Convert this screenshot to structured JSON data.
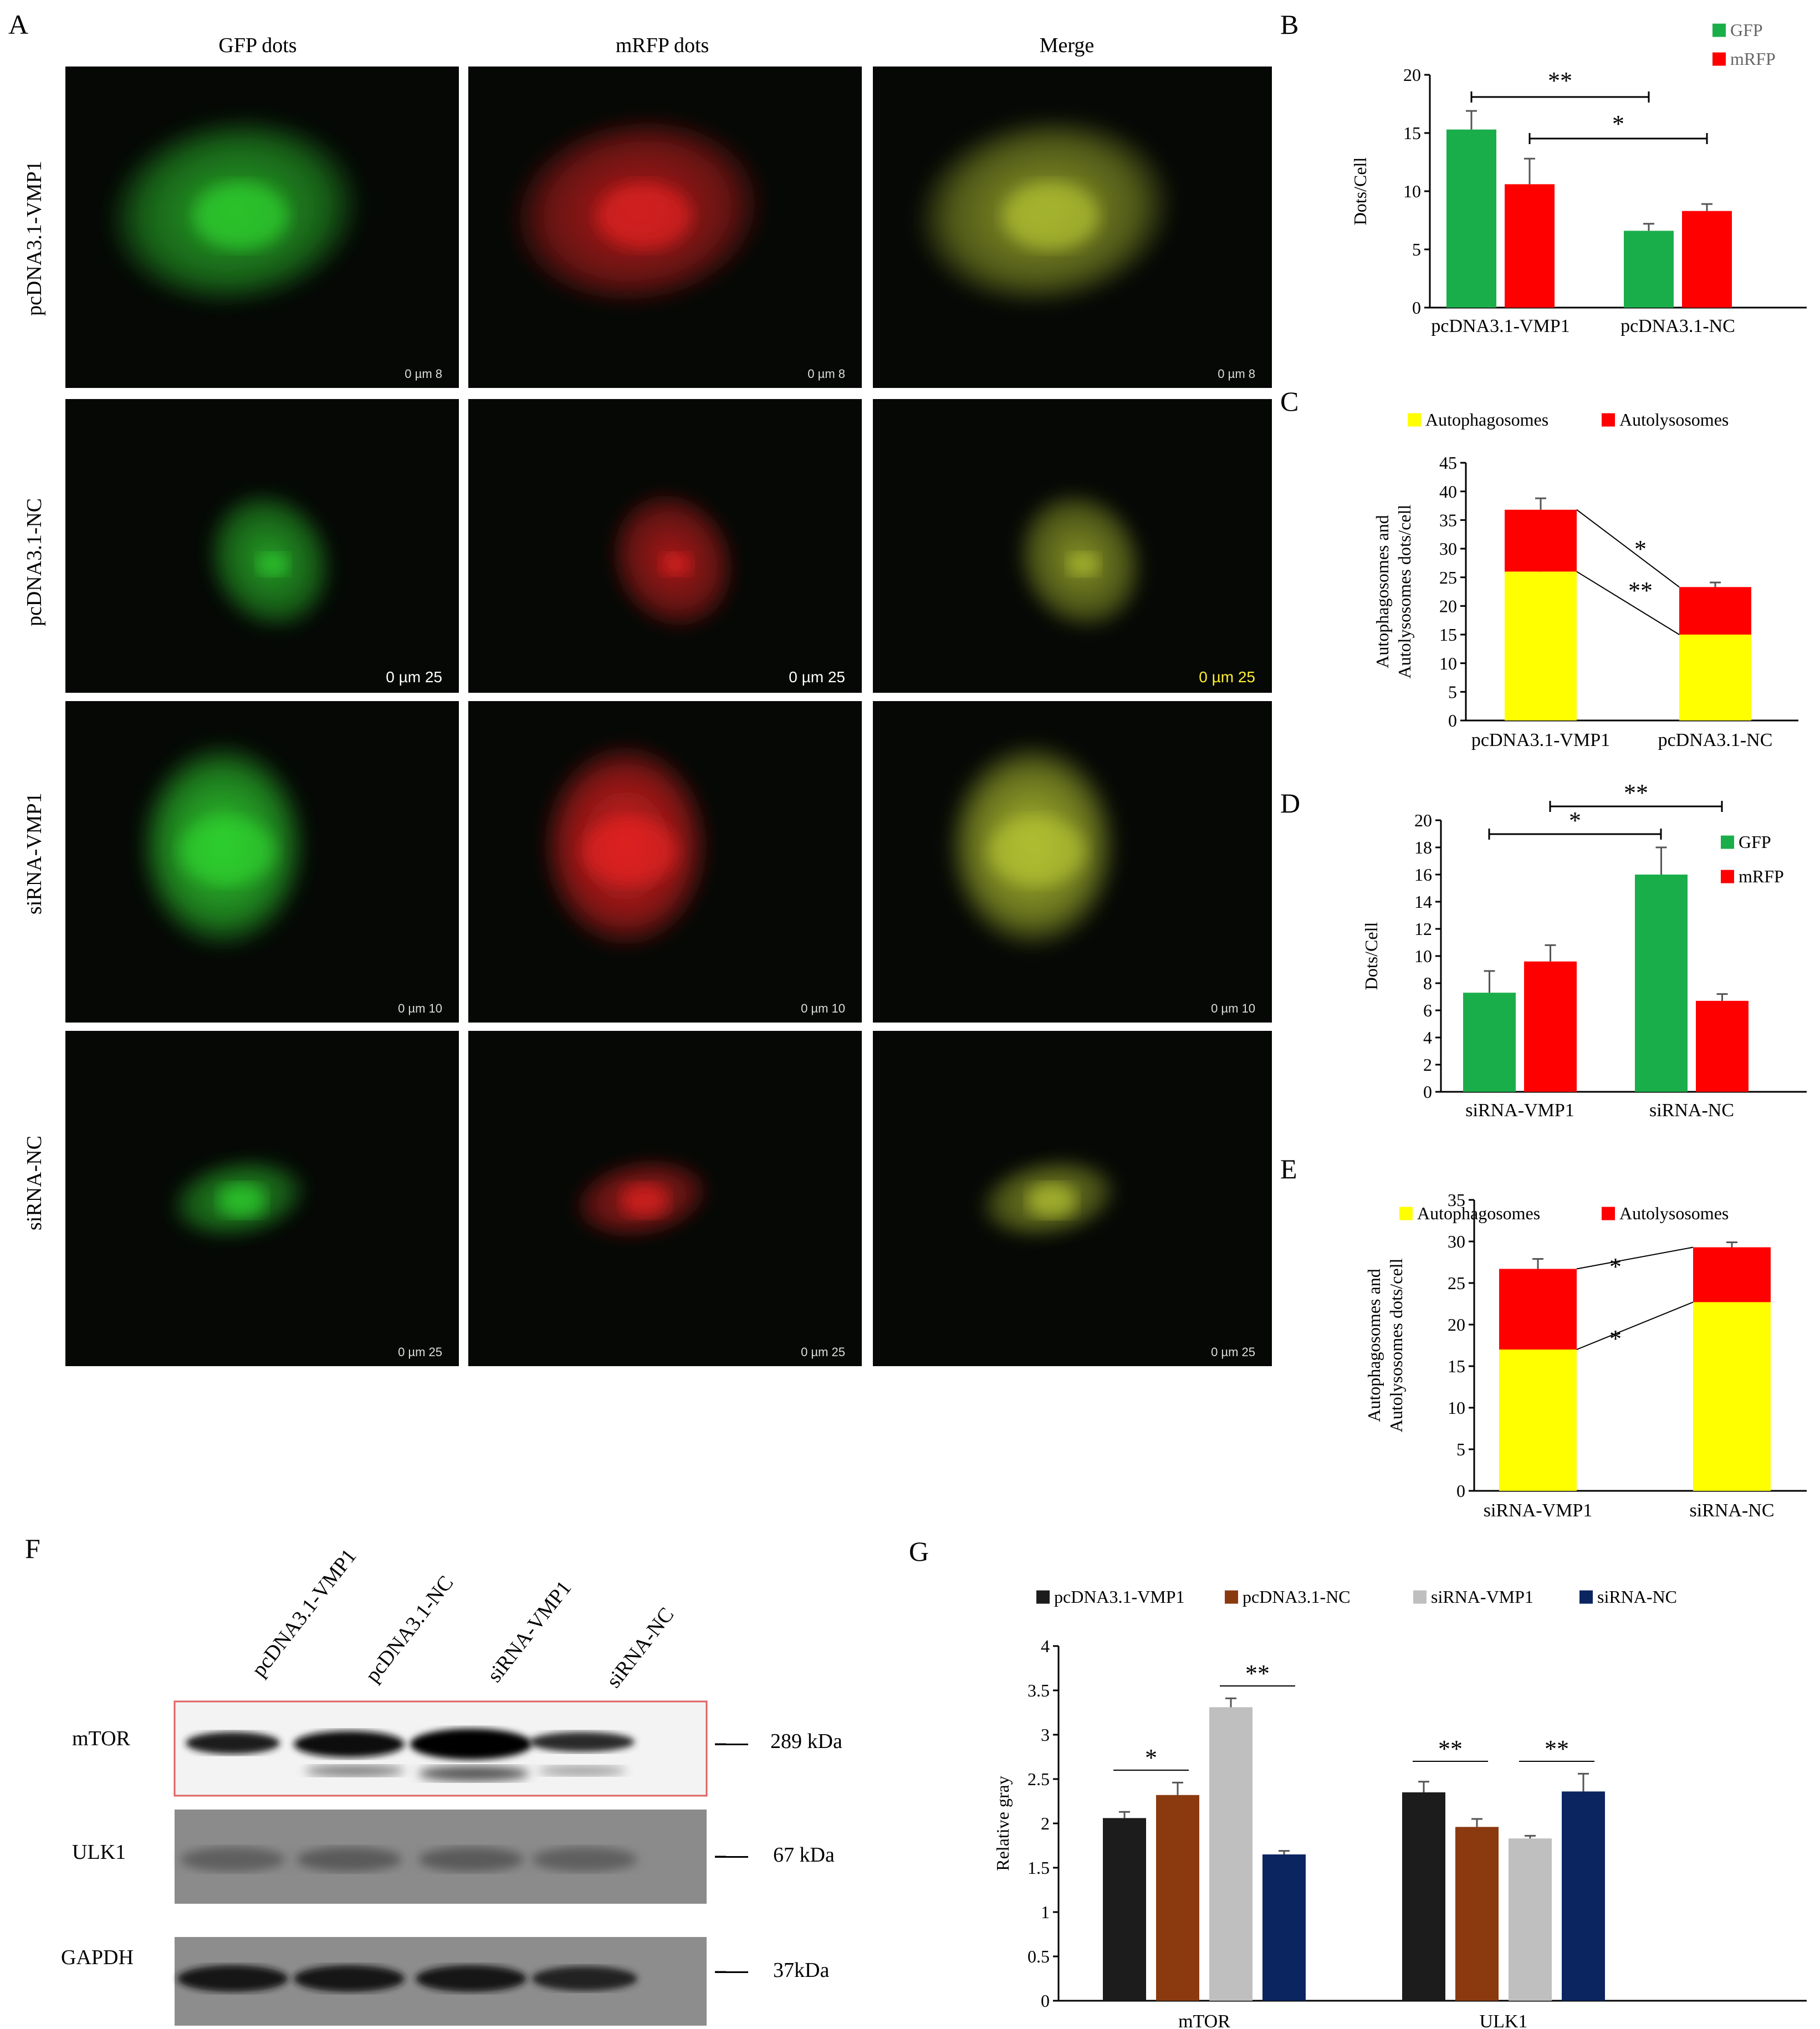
{
  "panel_labels": {
    "A": "A",
    "B": "B",
    "C": "C",
    "D": "D",
    "E": "E",
    "F": "F",
    "G": "G"
  },
  "microscopy": {
    "column_titles": [
      "GFP dots",
      "mRFP dots",
      "Merge"
    ],
    "row_labels": [
      "pcDNA3.1-VMP1",
      "pcDNA3.1-NC",
      "siRNA-VMP1",
      "siRNA-NC"
    ],
    "scale_bars": [
      [
        "0 µm 8",
        "0 µm 8",
        "0 µm 8"
      ],
      [
        "0 µm 25",
        "0 µm 25",
        "0 µm 25"
      ],
      [
        "0 µm 10",
        "0 µm 10",
        "0 µm 10"
      ],
      [
        "0 µm 25",
        "0 µm 25",
        "0 µm 25"
      ]
    ],
    "colors": {
      "green": "#2fd02f",
      "red": "#e02020",
      "merge": "#b0c030",
      "background": "#050805"
    }
  },
  "chart_data": [
    {
      "id": "B",
      "type": "bar",
      "categories": [
        "pcDNA3.1-VMP1",
        "pcDNA3.1-NC"
      ],
      "series": [
        {
          "name": "GFP",
          "color": "#1aae4a",
          "values": [
            15.3,
            6.6
          ],
          "errors": [
            1.6,
            0.6
          ]
        },
        {
          "name": "mRFP",
          "color": "#ff0000",
          "values": [
            10.6,
            8.3
          ],
          "errors": [
            2.2,
            0.6
          ]
        }
      ],
      "ylabel": "Dots/Cell",
      "ylim": [
        0,
        20
      ],
      "yticks": [
        "0",
        "5",
        "10",
        "15",
        "20"
      ],
      "significance": [
        "**",
        "*"
      ],
      "legend": "top-right"
    },
    {
      "id": "C",
      "type": "bar",
      "stacked": true,
      "categories": [
        "pcDNA3.1-VMP1",
        "pcDNA3.1-NC"
      ],
      "series": [
        {
          "name": "Autophagosomes",
          "color": "#ffff00",
          "values": [
            26.0,
            15.0
          ],
          "errors": [
            3.5,
            0.5
          ]
        },
        {
          "name": "Autolysosomes",
          "color": "#ff0000",
          "values": [
            10.8,
            8.3
          ],
          "errors": [
            2.0,
            0.8
          ]
        }
      ],
      "ylabel": "Autophagosomes and Autolysosomes dots/cell",
      "ylim": [
        0,
        45
      ],
      "yticks": [
        "0",
        "5",
        "10",
        "15",
        "20",
        "25",
        "30",
        "35",
        "40",
        "45"
      ],
      "significance": [
        "*",
        "**"
      ],
      "legend": "top"
    },
    {
      "id": "D",
      "type": "bar",
      "categories": [
        "siRNA-VMP1",
        "siRNA-NC"
      ],
      "series": [
        {
          "name": "GFP",
          "color": "#1aae4a",
          "values": [
            7.3,
            16.0
          ],
          "errors": [
            1.6,
            2.0
          ]
        },
        {
          "name": "mRFP",
          "color": "#ff0000",
          "values": [
            9.6,
            6.7
          ],
          "errors": [
            1.2,
            0.5
          ]
        }
      ],
      "ylabel": "Dots/Cell",
      "ylim": [
        0,
        20
      ],
      "yticks": [
        "0",
        "2",
        "4",
        "6",
        "8",
        "10",
        "12",
        "14",
        "16",
        "18",
        "20"
      ],
      "significance": [
        "*",
        "**"
      ],
      "legend": "right"
    },
    {
      "id": "E",
      "type": "bar",
      "stacked": true,
      "categories": [
        "siRNA-VMP1",
        "siRNA-NC"
      ],
      "series": [
        {
          "name": "Autophagosomes",
          "color": "#ffff00",
          "values": [
            17.0,
            22.7
          ],
          "errors": [
            2.7,
            2.5
          ]
        },
        {
          "name": "Autolysosomes",
          "color": "#ff0000",
          "values": [
            9.7,
            6.6
          ],
          "errors": [
            1.2,
            0.6
          ]
        }
      ],
      "ylabel": "Autophagosomes and Autolysosomes dots/cell",
      "ylim": [
        0,
        35
      ],
      "yticks": [
        "0",
        "5",
        "10",
        "15",
        "20",
        "25",
        "30",
        "35"
      ],
      "significance": [
        "*",
        "*"
      ],
      "legend": "top"
    },
    {
      "id": "G",
      "type": "bar",
      "categories": [
        "mTOR",
        "ULK1"
      ],
      "series": [
        {
          "name": "pcDNA3.1-VMP1",
          "color": "#1c1c1c",
          "values": [
            2.06,
            2.35
          ],
          "errors": [
            0.07,
            0.12
          ]
        },
        {
          "name": "pcDNA3.1-NC",
          "color": "#8b3a0f",
          "values": [
            2.32,
            1.96
          ],
          "errors": [
            0.14,
            0.09
          ]
        },
        {
          "name": "siRNA-VMP1",
          "color": "#bfbfbf",
          "values": [
            3.31,
            1.83
          ],
          "errors": [
            0.1,
            0.03
          ]
        },
        {
          "name": "siRNA-NC",
          "color": "#0b2561",
          "values": [
            1.65,
            2.36
          ],
          "errors": [
            0.04,
            0.2
          ]
        }
      ],
      "ylabel": "Relative gray",
      "ylim": [
        0,
        4
      ],
      "yticks": [
        "0",
        "0.5",
        "1",
        "1.5",
        "2",
        "2.5",
        "3",
        "3.5",
        "4"
      ],
      "significance": [
        "*",
        "**",
        "**",
        "**"
      ],
      "legend": "top"
    }
  ],
  "western_blot": {
    "lanes": [
      "pcDNA3.1-VMP1",
      "pcDNA3.1-NC",
      "siRNA-VMP1",
      "siRNA-NC"
    ],
    "rows": [
      {
        "protein": "mTOR",
        "size": "289 kDa"
      },
      {
        "protein": "ULK1",
        "size": "67 kDa"
      },
      {
        "protein": "GAPDH",
        "size": "37kDa"
      }
    ]
  }
}
